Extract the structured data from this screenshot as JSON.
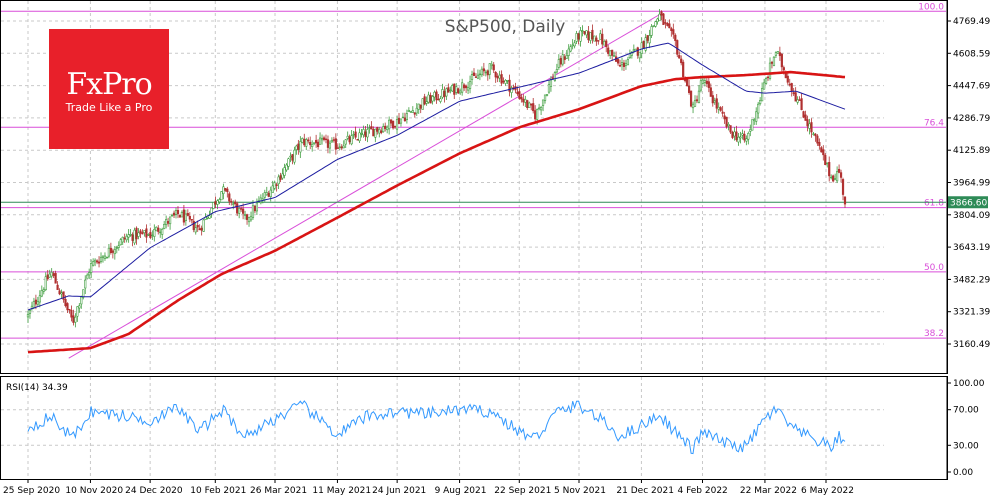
{
  "logo": {
    "name": "FxPro",
    "tagline": "Trade Like a Pro"
  },
  "colors": {
    "bull": "#3c9c3c",
    "bear": "#b03030",
    "ma_fast": "#1c1ca0",
    "ma_slow": "#d81414",
    "fib": "#d94fd9",
    "trend": "#d94fd9",
    "rsi": "#3399ff",
    "price_line": "#2e8b57",
    "price_box": "#2e8b57"
  },
  "chart_data": [
    {
      "type": "candlestick",
      "title": "S&P500, Daily",
      "ylim": [
        3060,
        4875
      ],
      "y_ticks": [
        "4769.49",
        "4608.59",
        "4447.69",
        "4286.79",
        "4125.89",
        "3964.99",
        "3804.09",
        "3643.19",
        "3482.29",
        "3321.39",
        "3160.49"
      ],
      "x_ticks": [
        "25 Sep 2020",
        "10 Nov 2020",
        "24 Dec 2020",
        "10 Feb 2021",
        "26 Mar 2021",
        "11 May 2021",
        "24 Jun 2021",
        "9 Aug 2021",
        "22 Sep 2021",
        "5 Nov 2021",
        "21 Dec 2021",
        "4 Feb 2022",
        "22 Mar 2022",
        "6 May 2022"
      ],
      "close_path": [
        [
          "2020-09-25",
          3300
        ],
        [
          "2020-10-12",
          3520
        ],
        [
          "2020-10-28",
          3270
        ],
        [
          "2020-11-10",
          3550
        ],
        [
          "2020-12-08",
          3700
        ],
        [
          "2020-12-24",
          3705
        ],
        [
          "2021-01-14",
          3810
        ],
        [
          "2021-01-29",
          3730
        ],
        [
          "2021-02-15",
          3930
        ],
        [
          "2021-03-04",
          3780
        ],
        [
          "2021-03-26",
          3960
        ],
        [
          "2021-04-15",
          4170
        ],
        [
          "2021-05-11",
          4150
        ],
        [
          "2021-06-01",
          4210
        ],
        [
          "2021-06-24",
          4270
        ],
        [
          "2021-07-15",
          4370
        ],
        [
          "2021-08-09",
          4440
        ],
        [
          "2021-09-01",
          4535
        ],
        [
          "2021-09-22",
          4400
        ],
        [
          "2021-10-04",
          4300
        ],
        [
          "2021-10-20",
          4540
        ],
        [
          "2021-11-05",
          4700
        ],
        [
          "2021-11-20",
          4690
        ],
        [
          "2021-12-05",
          4540
        ],
        [
          "2021-12-21",
          4640
        ],
        [
          "2022-01-03",
          4800
        ],
        [
          "2022-01-15",
          4660
        ],
        [
          "2022-01-28",
          4330
        ],
        [
          "2022-02-04",
          4480
        ],
        [
          "2022-02-24",
          4220
        ],
        [
          "2022-03-08",
          4170
        ],
        [
          "2022-03-22",
          4460
        ],
        [
          "2022-03-30",
          4620
        ],
        [
          "2022-04-12",
          4420
        ],
        [
          "2022-04-28",
          4180
        ],
        [
          "2022-05-10",
          3990
        ],
        [
          "2022-05-16",
          4020
        ],
        [
          "2022-05-20",
          3866.6
        ]
      ],
      "moving_averages": [
        {
          "path": [
            [
              "2020-09-25",
              3330
            ],
            [
              "2020-10-25",
              3400
            ],
            [
              "2020-11-10",
              3395
            ],
            [
              "2020-12-24",
              3640
            ],
            [
              "2021-02-10",
              3820
            ],
            [
              "2021-03-26",
              3890
            ],
            [
              "2021-05-11",
              4080
            ],
            [
              "2021-06-24",
              4200
            ],
            [
              "2021-08-09",
              4370
            ],
            [
              "2021-09-22",
              4440
            ],
            [
              "2021-11-05",
              4510
            ],
            [
              "2021-12-21",
              4630
            ],
            [
              "2022-01-10",
              4660
            ],
            [
              "2022-02-04",
              4550
            ],
            [
              "2022-03-08",
              4420
            ],
            [
              "2022-03-22",
              4410
            ],
            [
              "2022-04-14",
              4420
            ],
            [
              "2022-05-20",
              4330
            ]
          ]
        },
        {
          "path": [
            [
              "2020-09-25",
              3120
            ],
            [
              "2020-11-10",
              3140
            ],
            [
              "2020-12-08",
              3210
            ],
            [
              "2021-01-14",
              3380
            ],
            [
              "2021-02-15",
              3510
            ],
            [
              "2021-03-26",
              3625
            ],
            [
              "2021-05-11",
              3790
            ],
            [
              "2021-06-24",
              3950
            ],
            [
              "2021-08-09",
              4110
            ],
            [
              "2021-09-22",
              4240
            ],
            [
              "2021-11-05",
              4330
            ],
            [
              "2021-12-21",
              4445
            ],
            [
              "2022-01-15",
              4480
            ],
            [
              "2022-02-04",
              4490
            ],
            [
              "2022-03-08",
              4500
            ],
            [
              "2022-04-10",
              4515
            ],
            [
              "2022-05-20",
              4490
            ]
          ]
        }
      ],
      "trendline": [
        [
          "2020-10-25",
          3090
        ],
        [
          "2022-01-03",
          4800
        ]
      ],
      "fib_levels": [
        {
          "label": "100.0",
          "value": 4818
        },
        {
          "label": "76.4",
          "value": 4240
        },
        {
          "label": "61.8",
          "value": 3840
        },
        {
          "label": "50.0",
          "value": 3520
        },
        {
          "label": "38.2",
          "value": 3190
        }
      ],
      "last_price": "3866.60"
    },
    {
      "type": "line",
      "title": "RSI(14) 34.39",
      "ylim": [
        0,
        100
      ],
      "y_ticks": [
        "100.00",
        "70.00",
        "30.00",
        "0.00"
      ],
      "levels": [
        70,
        30
      ],
      "path": [
        [
          "2020-09-25",
          50
        ],
        [
          "2020-10-12",
          62
        ],
        [
          "2020-10-28",
          38
        ],
        [
          "2020-11-10",
          68
        ],
        [
          "2020-12-08",
          62
        ],
        [
          "2020-12-24",
          58
        ],
        [
          "2021-01-14",
          72
        ],
        [
          "2021-01-29",
          45
        ],
        [
          "2021-02-15",
          70
        ],
        [
          "2021-03-04",
          40
        ],
        [
          "2021-03-26",
          60
        ],
        [
          "2021-04-15",
          75
        ],
        [
          "2021-05-11",
          42
        ],
        [
          "2021-06-01",
          62
        ],
        [
          "2021-06-24",
          68
        ],
        [
          "2021-07-15",
          65
        ],
        [
          "2021-08-09",
          70
        ],
        [
          "2021-09-01",
          68
        ],
        [
          "2021-09-22",
          45
        ],
        [
          "2021-10-04",
          38
        ],
        [
          "2021-10-20",
          68
        ],
        [
          "2021-11-05",
          75
        ],
        [
          "2021-11-20",
          60
        ],
        [
          "2021-12-05",
          40
        ],
        [
          "2021-12-21",
          52
        ],
        [
          "2022-01-03",
          65
        ],
        [
          "2022-01-15",
          45
        ],
        [
          "2022-01-28",
          25
        ],
        [
          "2022-02-04",
          45
        ],
        [
          "2022-02-24",
          30
        ],
        [
          "2022-03-08",
          28
        ],
        [
          "2022-03-22",
          60
        ],
        [
          "2022-03-30",
          70
        ],
        [
          "2022-04-12",
          48
        ],
        [
          "2022-04-28",
          36
        ],
        [
          "2022-05-10",
          28
        ],
        [
          "2022-05-16",
          40
        ],
        [
          "2022-05-20",
          34.39
        ]
      ]
    }
  ]
}
